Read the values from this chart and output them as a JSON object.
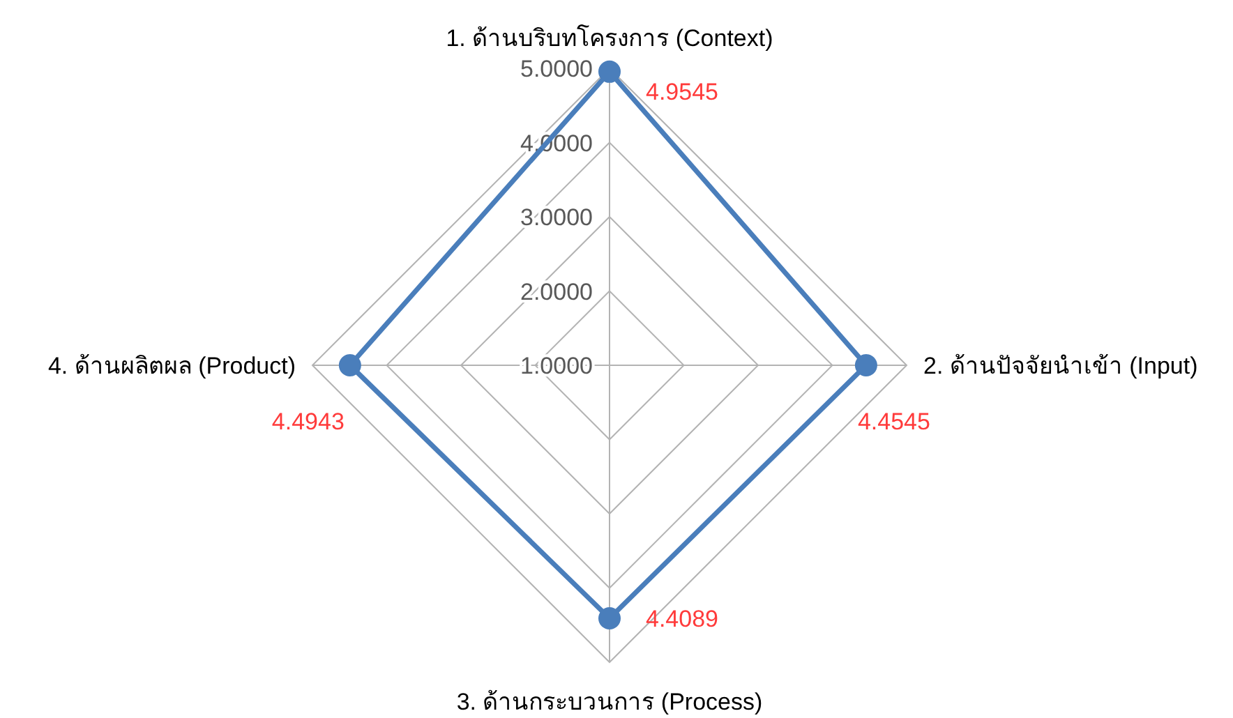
{
  "chart_data": {
    "type": "radar",
    "categories": [
      "1. ด้านบริบทโครงการ (Context)",
      "2. ด้านปัจจัยนำเข้า (Input)",
      "3. ด้านกระบวนการ (Process)",
      "4. ด้านผลิตผล (Product)"
    ],
    "series": [
      {
        "color": "#4a7ebb",
        "values": [
          4.9545,
          4.4545,
          4.4089,
          4.4943
        ],
        "value_labels": [
          "4.9545",
          "4.4545",
          "4.4089",
          "4.4943"
        ]
      }
    ],
    "ylim": [
      1,
      5
    ],
    "yticks": [
      {
        "value": 1,
        "label": "1.0000"
      },
      {
        "value": 2,
        "label": "2.0000"
      },
      {
        "value": 3,
        "label": "3.0000"
      },
      {
        "value": 4,
        "label": "4.0000"
      },
      {
        "value": 5,
        "label": "5.0000"
      }
    ],
    "grid": true,
    "marker": "circle",
    "line_style": "solid"
  }
}
